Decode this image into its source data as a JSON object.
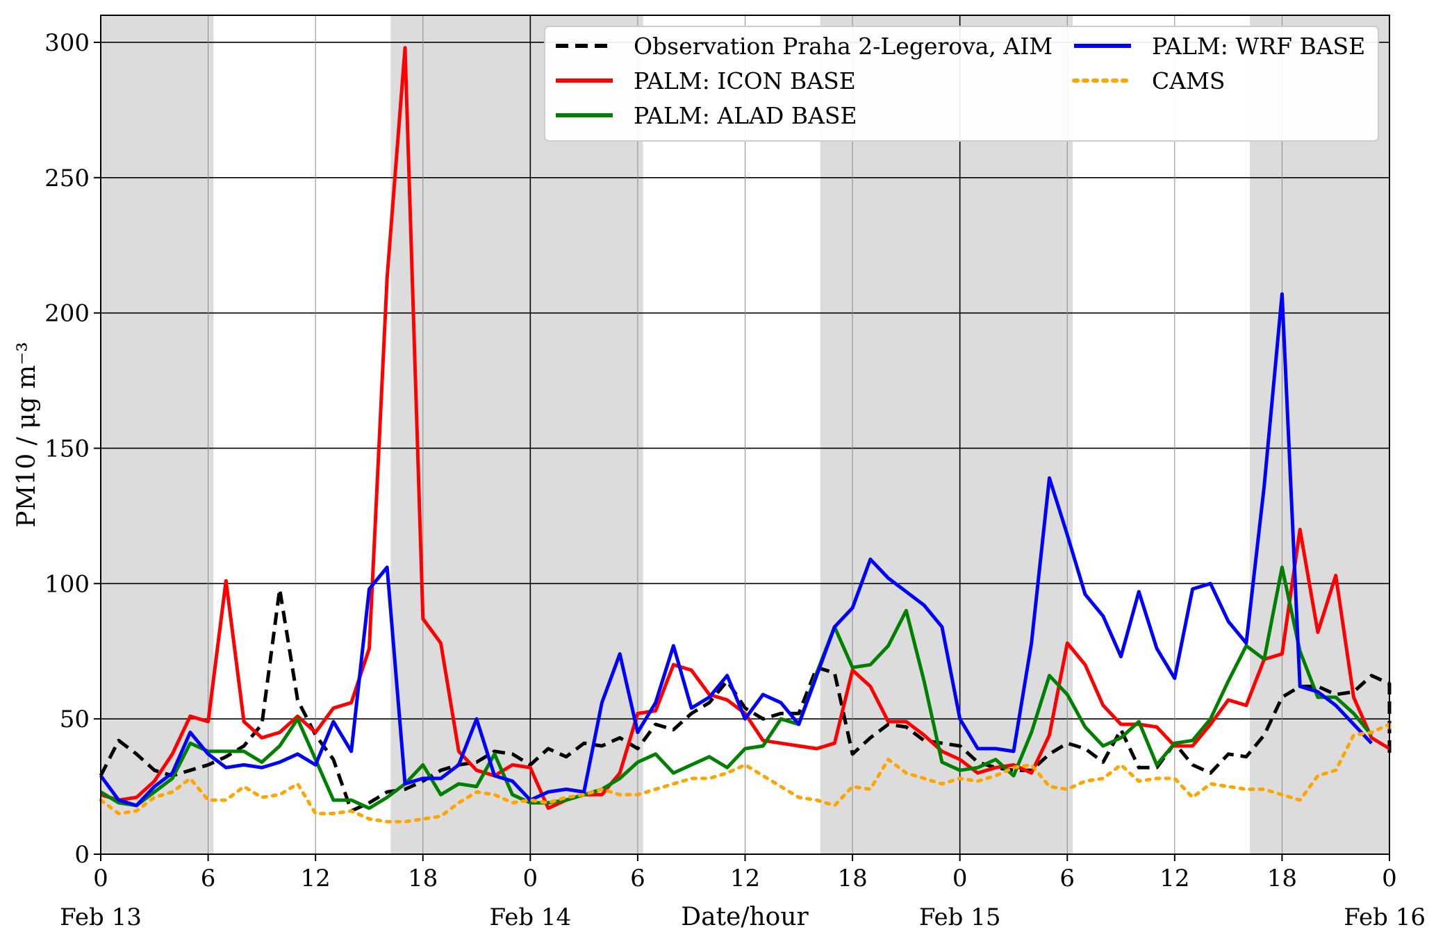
{
  "chart_data": {
    "type": "line",
    "xlabel": "Date/hour",
    "ylabel": "PM10 / μg m⁻³",
    "ylim": [
      0,
      310
    ],
    "xlim": [
      0,
      72
    ],
    "y_ticks": [
      0,
      50,
      100,
      150,
      200,
      250,
      300
    ],
    "x_ticks": [
      {
        "x": 0,
        "label": "0"
      },
      {
        "x": 6,
        "label": "6"
      },
      {
        "x": 12,
        "label": "12"
      },
      {
        "x": 18,
        "label": "18"
      },
      {
        "x": 24,
        "label": "0"
      },
      {
        "x": 30,
        "label": "6"
      },
      {
        "x": 36,
        "label": "12"
      },
      {
        "x": 42,
        "label": "18"
      },
      {
        "x": 48,
        "label": "0"
      },
      {
        "x": 54,
        "label": "6"
      },
      {
        "x": 60,
        "label": "12"
      },
      {
        "x": 66,
        "label": "18"
      },
      {
        "x": 72,
        "label": "0"
      }
    ],
    "date_labels": [
      {
        "x": 0,
        "label": "Feb 13"
      },
      {
        "x": 24,
        "label": "Feb 14"
      },
      {
        "x": 48,
        "label": "Feb 15"
      },
      {
        "x": 72,
        "label": "Feb 16"
      }
    ],
    "night_bands": [
      [
        0,
        6.3
      ],
      [
        16.2,
        30.3
      ],
      [
        40.2,
        54.3
      ],
      [
        64.2,
        72
      ]
    ],
    "grid": true,
    "legend_position": "top-right",
    "series": [
      {
        "name": "Observation Praha 2-Legerova, AIM",
        "color": "#000000",
        "style": "dashed",
        "values": [
          29,
          42,
          37,
          31,
          29,
          31,
          33,
          36,
          40,
          48,
          98,
          57,
          44,
          35,
          16,
          19,
          23,
          24,
          27,
          31,
          33,
          34,
          38,
          37,
          33,
          39,
          36,
          41,
          40,
          43,
          39,
          48,
          46,
          52,
          56,
          64,
          54,
          50,
          52,
          52,
          69,
          67,
          37,
          43,
          48,
          47,
          42,
          41,
          40,
          34,
          32,
          31,
          31,
          37,
          41,
          39,
          34,
          46,
          32,
          32,
          41,
          33,
          30,
          37,
          36,
          44,
          58,
          62,
          62,
          59,
          60,
          66,
          63,
          58,
          35
        ]
      },
      {
        "name": "PALM: ICON BASE",
        "color": "#ff0000",
        "style": "solid",
        "values": [
          22,
          20,
          21,
          27,
          37,
          51,
          49,
          101,
          49,
          43,
          45,
          51,
          45,
          54,
          56,
          76,
          213,
          298,
          87,
          78,
          38,
          31,
          29,
          33,
          32,
          17,
          20,
          22,
          22,
          30,
          52,
          53,
          70,
          68,
          59,
          57,
          52,
          42,
          41,
          40,
          39,
          41,
          68,
          62,
          49,
          49,
          44,
          38,
          35,
          30,
          32,
          33,
          30,
          44,
          78,
          70,
          55,
          48,
          48,
          47,
          40,
          40,
          48,
          57,
          55,
          72,
          74,
          120,
          82,
          103,
          58,
          43,
          39
        ]
      },
      {
        "name": "PALM: ALAD BASE",
        "color": "#008000",
        "style": "solid",
        "values": [
          23,
          19,
          18,
          23,
          28,
          41,
          38,
          38,
          38,
          34,
          40,
          50,
          35,
          20,
          20,
          17,
          21,
          26,
          33,
          22,
          26,
          25,
          37,
          22,
          19,
          19,
          20,
          22,
          24,
          28,
          34,
          37,
          30,
          33,
          36,
          32,
          39,
          40,
          50,
          48,
          67,
          84,
          69,
          70,
          77,
          90,
          64,
          34,
          31,
          32,
          35,
          29,
          45,
          66,
          59,
          47,
          40,
          43,
          49,
          33,
          41,
          42,
          50,
          64,
          77,
          72,
          106,
          75,
          58,
          58,
          52,
          44
        ]
      },
      {
        "name": "PALM: WRF BASE",
        "color": "#0000ff",
        "style": "solid",
        "values": [
          29,
          20,
          18,
          25,
          30,
          45,
          37,
          32,
          33,
          32,
          34,
          37,
          33,
          49,
          38,
          98,
          106,
          26,
          28,
          28,
          33,
          50,
          29,
          27,
          20,
          23,
          24,
          23,
          56,
          74,
          45,
          56,
          77,
          54,
          58,
          66,
          50,
          59,
          56,
          48,
          66,
          84,
          91,
          109,
          102,
          97,
          92,
          84,
          50,
          39,
          39,
          38,
          78,
          139,
          118,
          96,
          88,
          73,
          97,
          76,
          65,
          98,
          100,
          86,
          78,
          136,
          207,
          62,
          60,
          55,
          48,
          41
        ]
      },
      {
        "name": "CAMS",
        "color": "#ffa500",
        "style": "dotted",
        "values": [
          20,
          15,
          16,
          21,
          23,
          28,
          20,
          20,
          25,
          21,
          22,
          26,
          15,
          15,
          16,
          13,
          12,
          12,
          13,
          14,
          19,
          23,
          22,
          19,
          20,
          19,
          21,
          22,
          24,
          22,
          22,
          24,
          26,
          28,
          28,
          30,
          33,
          29,
          25,
          21,
          20,
          18,
          25,
          24,
          35,
          30,
          28,
          26,
          28,
          27,
          29,
          32,
          33,
          25,
          24,
          27,
          28,
          33,
          27,
          28,
          28,
          21,
          26,
          25,
          24,
          24,
          22,
          20,
          29,
          31,
          44,
          45,
          48,
          46,
          49
        ]
      }
    ]
  }
}
